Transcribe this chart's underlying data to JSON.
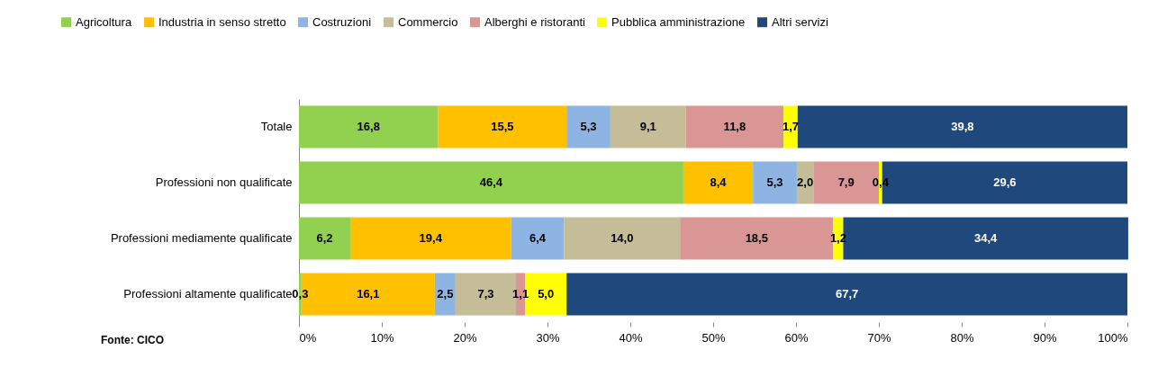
{
  "chart_data": {
    "type": "bar",
    "orientation": "horizontal",
    "stacked": true,
    "legend": "top",
    "grid": false,
    "categories": [
      "Totale",
      "Professioni non qualificate",
      "Professioni mediamente qualificate",
      "Professioni altamente qualificate"
    ],
    "xlim": [
      0,
      100
    ],
    "xticks": [
      {
        "value": 0,
        "label": "0%"
      },
      {
        "value": 10,
        "label": "10%"
      },
      {
        "value": 20,
        "label": "20%"
      },
      {
        "value": 30,
        "label": "30%"
      },
      {
        "value": 40,
        "label": "40%"
      },
      {
        "value": 50,
        "label": "50%"
      },
      {
        "value": 60,
        "label": "60%"
      },
      {
        "value": 70,
        "label": "70%"
      },
      {
        "value": 80,
        "label": "80%"
      },
      {
        "value": 90,
        "label": "90%"
      },
      {
        "value": 100,
        "label": "100%"
      }
    ],
    "series": [
      {
        "name": "Agricoltura",
        "color": "#92d050",
        "values": [
          16.8,
          46.4,
          6.2,
          0.3
        ],
        "value_labels": [
          "16,8",
          "46,4",
          "6,2",
          "0,3"
        ]
      },
      {
        "name": "Industria in senso stretto",
        "color": "#ffc000",
        "values": [
          15.5,
          8.4,
          19.4,
          16.1
        ],
        "value_labels": [
          "15,5",
          "8,4",
          "19,4",
          "16,1"
        ]
      },
      {
        "name": "Costruzioni",
        "color": "#8eb4e3",
        "values": [
          5.3,
          5.3,
          6.4,
          2.5
        ],
        "value_labels": [
          "5,3",
          "5,3",
          "6,4",
          "2,5"
        ]
      },
      {
        "name": "Commercio",
        "color": "#c4bd97",
        "values": [
          9.1,
          2.0,
          14.0,
          7.3
        ],
        "value_labels": [
          "9,1",
          "2,0",
          "14,0",
          "7,3"
        ]
      },
      {
        "name": "Alberghi e ristoranti",
        "color": "#d99694",
        "values": [
          11.8,
          7.9,
          18.5,
          1.1
        ],
        "value_labels": [
          "11,8",
          "7,9",
          "18,5",
          "1,1"
        ]
      },
      {
        "name": "Pubblica amministrazione",
        "color": "#ffff00",
        "values": [
          1.7,
          0.4,
          1.2,
          5.0
        ],
        "value_labels": [
          "1,7",
          "0,4",
          "1,2",
          "5,0"
        ]
      },
      {
        "name": "Altri servizi",
        "color": "#1f497d",
        "values": [
          39.8,
          29.6,
          34.4,
          67.7
        ],
        "value_labels": [
          "39,8",
          "29,6",
          "34,4",
          "67,7"
        ]
      }
    ],
    "annotations": [
      "Fonte: CICO"
    ]
  }
}
